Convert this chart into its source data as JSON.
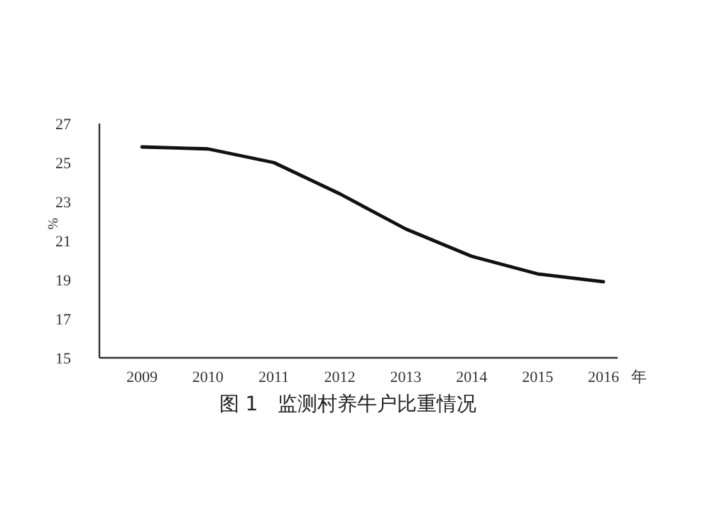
{
  "chart_data": {
    "type": "line",
    "title": "图 1　监测村养牛户比重情况",
    "xlabel": "年",
    "ylabel": "%",
    "categories": [
      "2009",
      "2010",
      "2011",
      "2012",
      "2013",
      "2014",
      "2015",
      "2016"
    ],
    "series": [
      {
        "color": "#111111",
        "values": [
          25.8,
          25.7,
          25.0,
          23.4,
          21.6,
          20.2,
          19.3,
          18.9
        ]
      }
    ],
    "ylim": [
      15,
      27
    ],
    "yticks": [
      15,
      17,
      19,
      21,
      23,
      25,
      27
    ]
  }
}
